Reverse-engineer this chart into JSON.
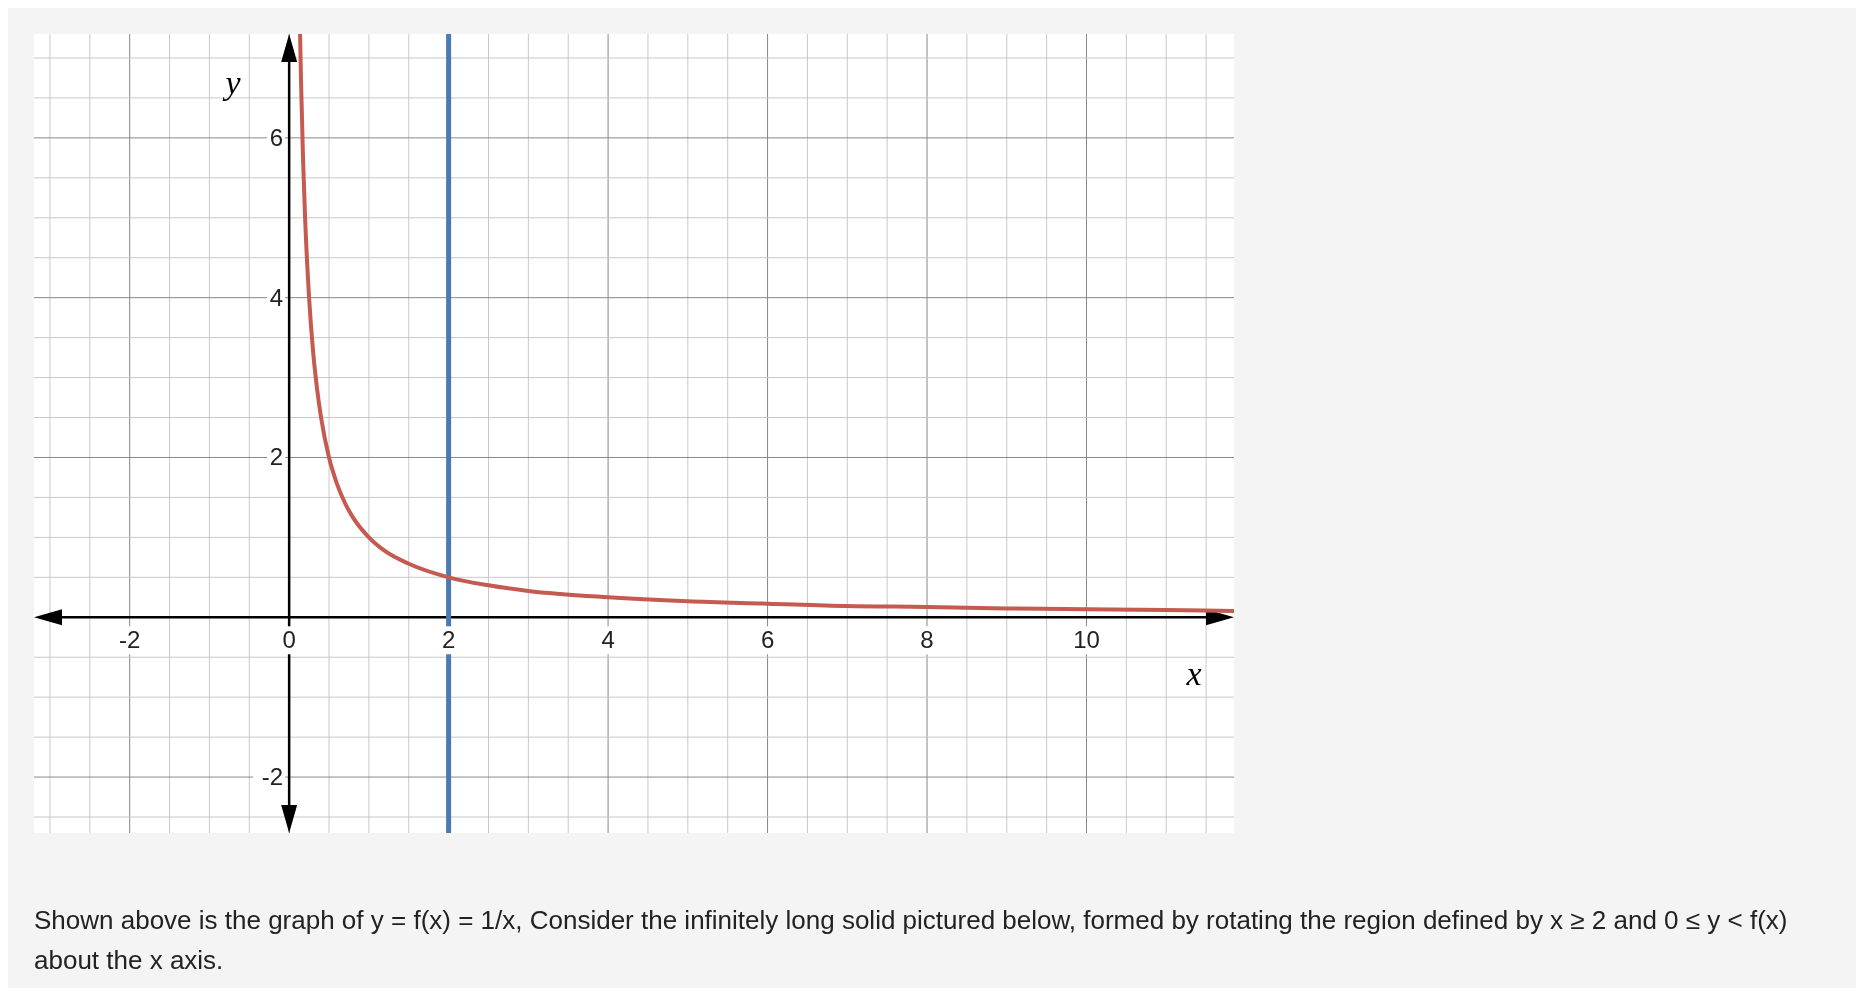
{
  "chart_data": {
    "type": "line",
    "xlabel": "x",
    "ylabel": "y",
    "x": [
      0.137,
      0.15,
      0.175,
      0.2,
      0.25,
      0.3,
      0.35,
      0.4,
      0.5,
      0.6,
      0.7,
      0.8,
      1,
      1.2,
      1.5,
      2,
      2.5,
      3,
      4,
      5,
      6,
      7,
      8,
      9,
      10,
      11,
      11.85
    ],
    "series": [
      {
        "color": "#c45a50",
        "values": [
          7.3,
          6.67,
          5.71,
          5,
          4,
          3.33,
          2.86,
          2.5,
          2,
          1.67,
          1.43,
          1.25,
          1,
          0.83,
          0.67,
          0.5,
          0.4,
          0.33,
          0.25,
          0.2,
          0.17,
          0.14,
          0.13,
          0.11,
          0.1,
          0.09,
          0.08
        ]
      }
    ],
    "xlim": [
      -3.2,
      11.85
    ],
    "ylim": [
      -2.7,
      7.3
    ],
    "xticks": [
      {
        "value": -3,
        "label": null
      },
      {
        "value": -2.5,
        "label": null
      },
      -2,
      {
        "value": -1.5,
        "label": null
      },
      {
        "value": -1,
        "label": null
      },
      {
        "value": -0.5,
        "label": null
      },
      0,
      {
        "value": 0.5,
        "label": null
      },
      {
        "value": 1,
        "label": null
      },
      {
        "value": 1.5,
        "label": null
      },
      2,
      {
        "value": 2.5,
        "label": null
      },
      {
        "value": 3,
        "label": null
      },
      {
        "value": 3.5,
        "label": null
      },
      4,
      {
        "value": 4.5,
        "label": null
      },
      {
        "value": 5,
        "label": null
      },
      {
        "value": 5.5,
        "label": null
      },
      6,
      {
        "value": 6.5,
        "label": null
      },
      {
        "value": 7,
        "label": null
      },
      {
        "value": 7.5,
        "label": null
      },
      8,
      {
        "value": 8.5,
        "label": null
      },
      {
        "value": 9,
        "label": null
      },
      {
        "value": 9.5,
        "label": null
      },
      10,
      {
        "value": 10.5,
        "label": null
      },
      {
        "value": 11,
        "label": null
      },
      {
        "value": 11.5,
        "label": null
      }
    ],
    "yticks": [
      {
        "value": -2.5,
        "label": null
      },
      -2,
      {
        "value": -1.5,
        "label": null
      },
      {
        "value": -1,
        "label": null
      },
      {
        "value": -0.5,
        "label": null
      },
      {
        "value": 0.5,
        "label": null
      },
      {
        "value": 1,
        "label": null
      },
      {
        "value": 1.5,
        "label": null
      },
      2,
      {
        "value": 2.5,
        "label": null
      },
      {
        "value": 3,
        "label": null
      },
      {
        "value": 3.5,
        "label": null
      },
      4,
      {
        "value": 4.5,
        "label": null
      },
      {
        "value": 5,
        "label": null
      },
      {
        "value": 5.5,
        "label": null
      },
      6,
      {
        "value": 6.5,
        "label": null
      },
      {
        "value": 7,
        "label": null
      }
    ],
    "grid": true,
    "marker": "none",
    "line_style": "solid",
    "ref_lines": [
      {
        "axis": "x",
        "value": 2,
        "color": "#4a7ab5"
      }
    ],
    "annotations": [
      "Shown above is the graph of y = f(x) = 1/x, Consider the infinitely long solid pictured below, formed by rotating the region defined by x ≥ 2 and 0 ≤ y < f(x) about the x axis."
    ]
  }
}
